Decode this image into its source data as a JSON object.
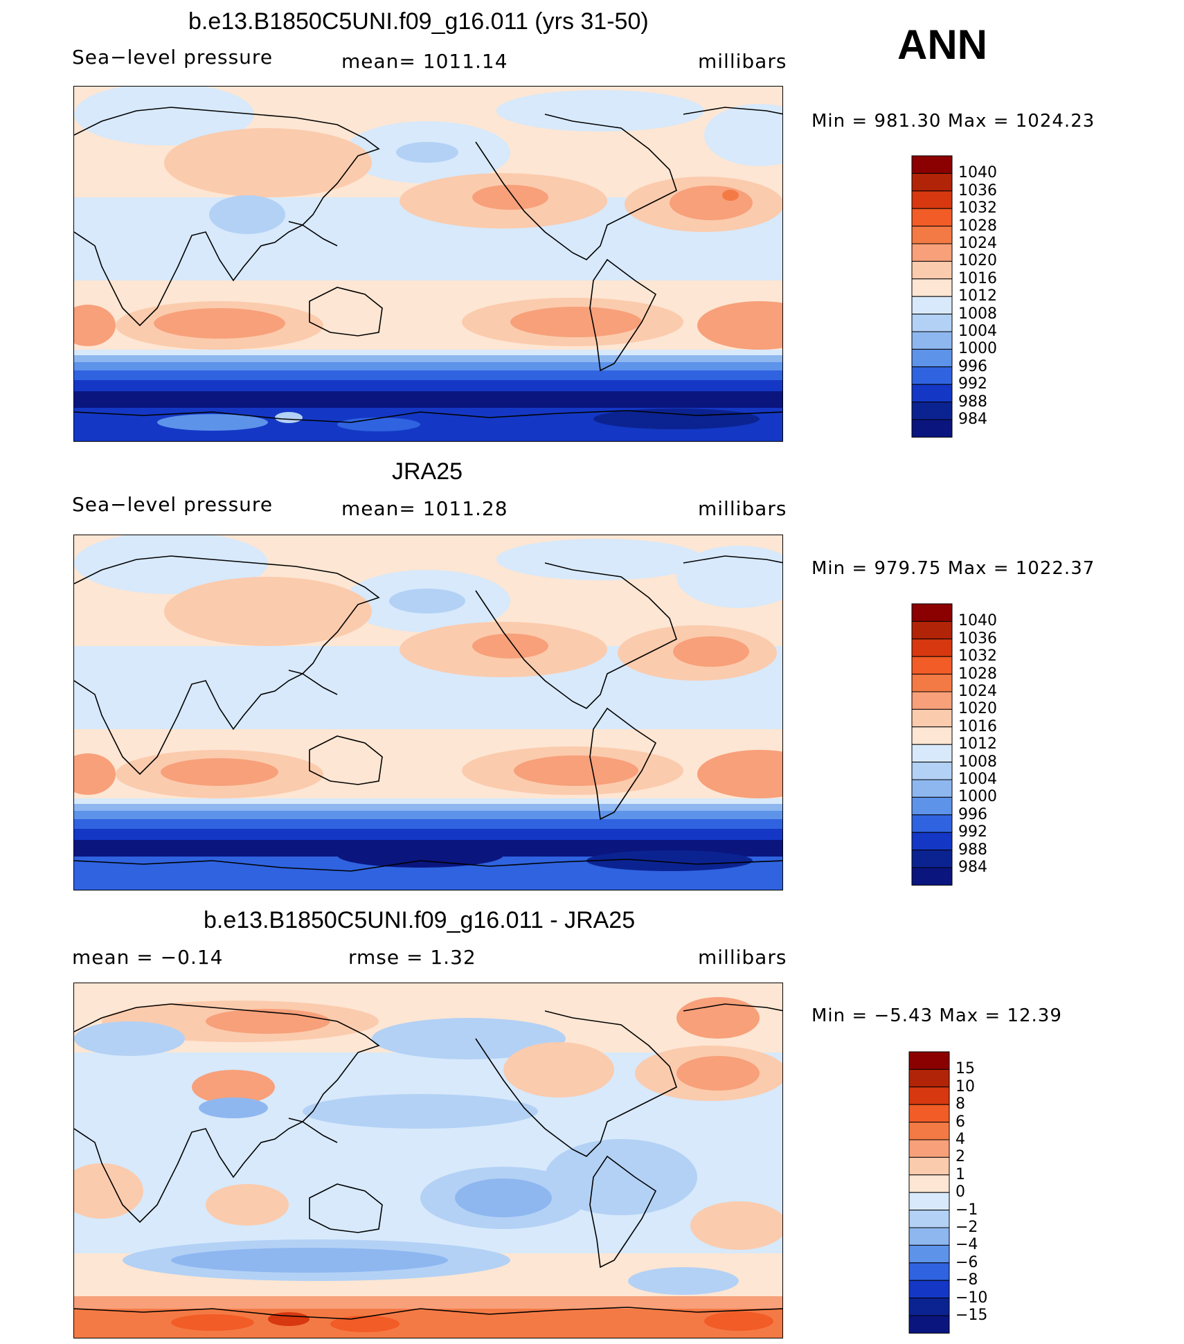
{
  "season": "ANN",
  "panels": [
    {
      "title": "b.e13.B1850C5UNI.f09_g16.011 (yrs 31-50)",
      "left": "Sea−level pressure",
      "center": "mean=  1011.14",
      "right": "millibars",
      "minmax": "Min  =  981.30  Max  =  1024.23"
    },
    {
      "title": "JRA25",
      "left": "Sea−level pressure",
      "center": "mean=  1011.28",
      "right": "millibars",
      "minmax": "Min  =  979.75  Max  =  1022.37"
    },
    {
      "title": "b.e13.B1850C5UNI.f09_g16.011 - JRA25",
      "left": "mean  =    −0.14",
      "center": "rmse  =     1.32",
      "right": "millibars",
      "minmax": "Min  =    −5.43  Max  =    12.39"
    }
  ],
  "chart_data": [
    {
      "type": "heatmap",
      "title": "b.e13.B1850C5UNI.f09_g16.011 (yrs 31-50)",
      "variable": "Sea-level pressure",
      "units": "millibars",
      "mean": 1011.14,
      "min": 981.3,
      "max": 1024.23,
      "colorbar_levels": [
        "1040",
        "1036",
        "1032",
        "1028",
        "1024",
        "1020",
        "1016",
        "1012",
        "1008",
        "1004",
        "1000",
        "996",
        "992",
        "988",
        "984"
      ],
      "colors": [
        "#8b0000",
        "#b22407",
        "#d7380f",
        "#f25c27",
        "#f47a45",
        "#f7a07a",
        "#fbcbad",
        "#fde6d3",
        "#d7e9fb",
        "#b3d1f5",
        "#8eb7f0",
        "#5e93ea",
        "#2f63e0",
        "#1438c5",
        "#0b2391",
        "#0a157e"
      ]
    },
    {
      "type": "heatmap",
      "title": "JRA25",
      "variable": "Sea-level pressure",
      "units": "millibars",
      "mean": 1011.28,
      "min": 979.75,
      "max": 1022.37,
      "colorbar_levels": [
        "1040",
        "1036",
        "1032",
        "1028",
        "1024",
        "1020",
        "1016",
        "1012",
        "1008",
        "1004",
        "1000",
        "996",
        "992",
        "988",
        "984"
      ],
      "colors": [
        "#8b0000",
        "#b22407",
        "#d7380f",
        "#f25c27",
        "#f47a45",
        "#f7a07a",
        "#fbcbad",
        "#fde6d3",
        "#d7e9fb",
        "#b3d1f5",
        "#8eb7f0",
        "#5e93ea",
        "#2f63e0",
        "#1438c5",
        "#0b2391",
        "#0a157e"
      ]
    },
    {
      "type": "heatmap",
      "title": "b.e13.B1850C5UNI.f09_g16.011 - JRA25",
      "units": "millibars",
      "mean": -0.14,
      "rmse": 1.32,
      "min": -5.43,
      "max": 12.39,
      "colorbar_levels": [
        "15",
        "10",
        "8",
        "6",
        "4",
        "2",
        "1",
        "0",
        "−1",
        "−2",
        "−4",
        "−6",
        "−8",
        "−10",
        "−15"
      ],
      "colors": [
        "#8b0000",
        "#b22407",
        "#d7380f",
        "#f25c27",
        "#f47a45",
        "#f7a07a",
        "#fbcbad",
        "#fde6d3",
        "#d7e9fb",
        "#b3d1f5",
        "#8eb7f0",
        "#5e93ea",
        "#2f63e0",
        "#1438c5",
        "#0b2391",
        "#0a157e"
      ]
    }
  ]
}
